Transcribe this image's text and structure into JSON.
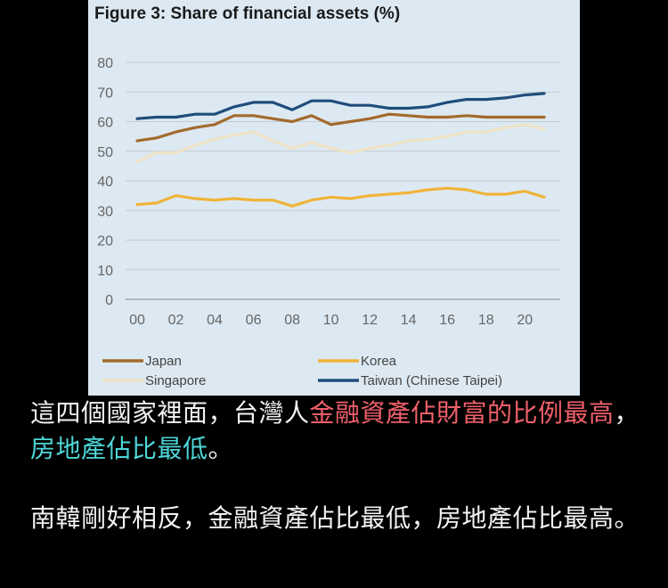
{
  "chart_data": {
    "type": "line",
    "title": "Figure 3: Share of financial assets (%)",
    "x": [
      0,
      1,
      2,
      3,
      4,
      5,
      6,
      7,
      8,
      9,
      10,
      11,
      12,
      13,
      14,
      15,
      16,
      17,
      18,
      19,
      20,
      21
    ],
    "x_ticks": [
      "00",
      "02",
      "04",
      "06",
      "08",
      "10",
      "12",
      "14",
      "16",
      "18",
      "20"
    ],
    "x_tick_values": [
      0,
      2,
      4,
      6,
      8,
      10,
      12,
      14,
      16,
      18,
      20
    ],
    "xlim": [
      0,
      21
    ],
    "ylim": [
      0,
      80
    ],
    "y_ticks": [
      0,
      10,
      20,
      30,
      40,
      50,
      60,
      70,
      80
    ],
    "grid": true,
    "legend": "bottom",
    "series": [
      {
        "name": "Japan",
        "color": "#a36a2d",
        "values": [
          53.5,
          54.5,
          56.5,
          58,
          59,
          62,
          62,
          61,
          60,
          62,
          59,
          60,
          61,
          62.5,
          62,
          61.5,
          61.5,
          62,
          61.5,
          61.5,
          61.5,
          61.5
        ]
      },
      {
        "name": "Korea",
        "color": "#f0b43a",
        "values": [
          32,
          32.5,
          35,
          34,
          33.5,
          34,
          33.5,
          33.5,
          31.5,
          33.5,
          34.5,
          34,
          35,
          35.5,
          36,
          37,
          37.5,
          37,
          35.5,
          35.5,
          36.5,
          34.5
        ]
      },
      {
        "name": "Singapore",
        "color": "#efe2c6",
        "values": [
          46.5,
          49.5,
          49.5,
          52,
          54,
          55.5,
          56.5,
          53.5,
          51,
          53,
          51,
          49.5,
          51,
          52,
          53.5,
          54,
          55,
          56.5,
          56.5,
          58,
          59,
          57.5
        ]
      },
      {
        "name": "Taiwan (Chinese Taipei)",
        "color": "#1f4d7c",
        "values": [
          61,
          61.5,
          61.5,
          62.5,
          62.5,
          65,
          66.5,
          66.5,
          64,
          67,
          67,
          65.5,
          65.5,
          64.5,
          64.5,
          65,
          66.5,
          67.5,
          67.5,
          68,
          69,
          69.5
        ]
      }
    ]
  },
  "caption": {
    "line1_plain": "這四個國家裡面，台灣人",
    "line1_red": "金融資產佔財富的比例最高",
    "line1_sep": "，",
    "line1_cyan": "房地產佔比最低",
    "line1_end": "。",
    "line2": "南韓剛好相反，金融資產佔比最低，房地產佔比最高。"
  }
}
